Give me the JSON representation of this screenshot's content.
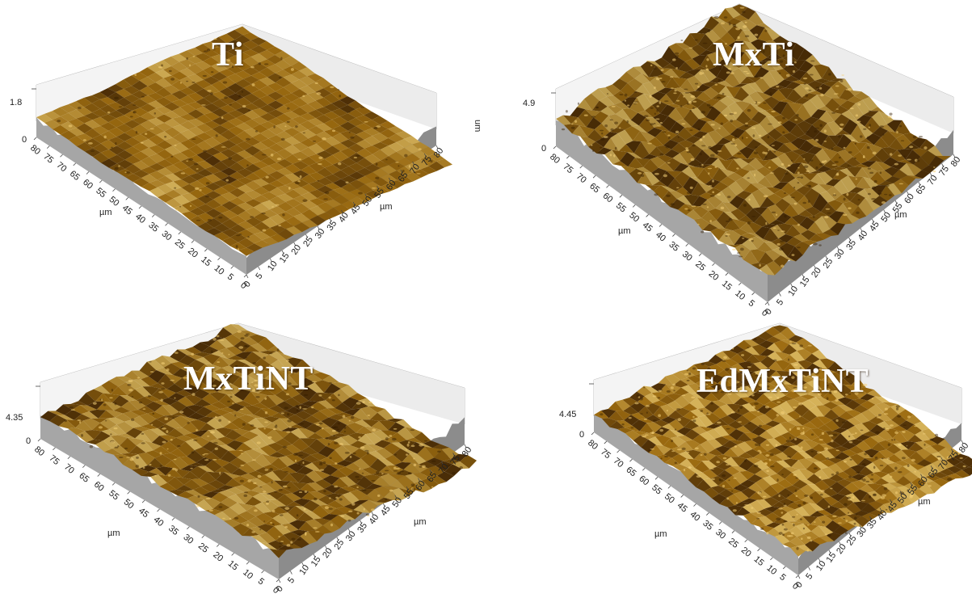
{
  "panels": [
    {
      "key": "ti",
      "title": "Ti",
      "zmax": "1.8",
      "xunit": "µm",
      "yunit": "µm",
      "zunit": "um"
    },
    {
      "key": "mxti",
      "title": "MxTi",
      "zmax": "4.9",
      "xunit": "µm",
      "yunit": "µm"
    },
    {
      "key": "mxtint",
      "title": "MxTiNT",
      "zmax": "4.35",
      "xunit": "µm",
      "yunit": "µm"
    },
    {
      "key": "edmxtint",
      "title": "EdMxTiNT",
      "zmax": "4.45",
      "xunit": "µm",
      "yunit": "µm"
    }
  ],
  "axis_ticks": [
    "0",
    "5",
    "10",
    "15",
    "20",
    "25",
    "30",
    "35",
    "40",
    "45",
    "50",
    "55",
    "60",
    "65",
    "70",
    "75",
    "80"
  ],
  "colors": {
    "surface_dark": "#5a3a06",
    "surface_mid": "#a8740f",
    "surface_light": "#e8c060",
    "base_gray": "#9b9b9b"
  }
}
